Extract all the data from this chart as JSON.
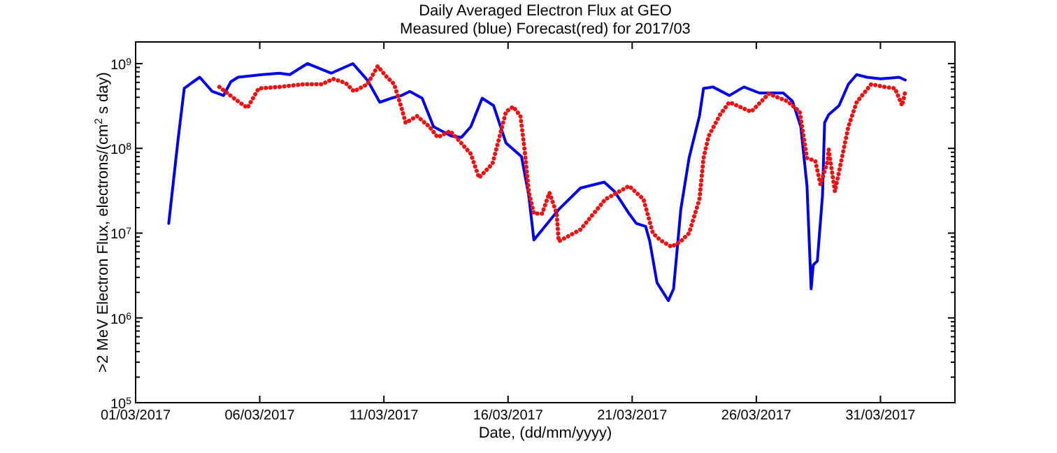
{
  "chart_data": {
    "type": "line",
    "title": "Daily Averaged Electron Flux at GEO",
    "subtitle": "Measured (blue) Forecast(red) for 2017/03",
    "xlabel": "Date, (dd/mm/yyyy)",
    "ylabel": ">2 MeV Electron Flux, electrons/(cm$^{2}$ s day)",
    "log": true,
    "xlim": [
      "2017-03-01",
      "2017-04-03"
    ],
    "xticks": [
      {
        "value": "2017-03-01",
        "label": "01/03/2017"
      },
      {
        "value": "2017-03-06",
        "label": "06/03/2017"
      },
      {
        "value": "2017-03-11",
        "label": "11/03/2017"
      },
      {
        "value": "2017-03-16",
        "label": "16/03/2017"
      },
      {
        "value": "2017-03-21",
        "label": "21/03/2017"
      },
      {
        "value": "2017-03-26",
        "label": "26/03/2017"
      },
      {
        "value": "2017-03-31",
        "label": "31/03/2017"
      }
    ],
    "ylim": [
      100000,
      1800000000
    ],
    "yticks": [
      {
        "value": 100000,
        "label": "10$^{5}$"
      },
      {
        "value": 200000,
        "label": null
      },
      {
        "value": 300000,
        "label": null
      },
      {
        "value": 400000,
        "label": null
      },
      {
        "value": 500000,
        "label": null
      },
      {
        "value": 600000,
        "label": null
      },
      {
        "value": 700000,
        "label": null
      },
      {
        "value": 800000,
        "label": null
      },
      {
        "value": 900000,
        "label": null
      },
      {
        "value": 1000000,
        "label": "10$^{6}$"
      },
      {
        "value": 2000000,
        "label": null
      },
      {
        "value": 3000000,
        "label": null
      },
      {
        "value": 4000000,
        "label": null
      },
      {
        "value": 5000000,
        "label": null
      },
      {
        "value": 6000000,
        "label": null
      },
      {
        "value": 7000000,
        "label": null
      },
      {
        "value": 8000000,
        "label": null
      },
      {
        "value": 9000000,
        "label": null
      },
      {
        "value": 10000000,
        "label": "10$^{7}$"
      },
      {
        "value": 20000000,
        "label": null
      },
      {
        "value": 30000000,
        "label": null
      },
      {
        "value": 40000000,
        "label": null
      },
      {
        "value": 50000000,
        "label": null
      },
      {
        "value": 60000000,
        "label": null
      },
      {
        "value": 70000000,
        "label": null
      },
      {
        "value": 80000000,
        "label": null
      },
      {
        "value": 90000000,
        "label": null
      },
      {
        "value": 100000000,
        "label": "10$^{8}$"
      },
      {
        "value": 200000000,
        "label": null
      },
      {
        "value": 300000000,
        "label": null
      },
      {
        "value": 400000000,
        "label": null
      },
      {
        "value": 500000000,
        "label": null
      },
      {
        "value": 600000000,
        "label": null
      },
      {
        "value": 700000000,
        "label": null
      },
      {
        "value": 800000000,
        "label": null
      },
      {
        "value": 900000000,
        "label": null
      },
      {
        "value": 1000000000,
        "label": "10$^{9}$"
      }
    ],
    "series": [
      {
        "color": "#0000ee",
        "line_style": "solid",
        "x": [
          "2017-03-02T08:00",
          "2017-03-02T17:00",
          "2017-03-02T23:00",
          "2017-03-03T06:00",
          "2017-03-03T14:00",
          "2017-03-04T02:00",
          "2017-03-04T13:00",
          "2017-03-04T20:00",
          "2017-03-05T03:00",
          "2017-03-06T02:00",
          "2017-03-06T19:00",
          "2017-03-07T05:00",
          "2017-03-07T22:00",
          "2017-03-08T21:00",
          "2017-03-09T18:00",
          "2017-03-10T08:00",
          "2017-03-10T20:00",
          "2017-03-11T07:00",
          "2017-03-11T17:00",
          "2017-03-12T01:00",
          "2017-03-12T13:00",
          "2017-03-13T00:00",
          "2017-03-13T17:00",
          "2017-03-14T03:00",
          "2017-03-14T12:00",
          "2017-03-14T23:00",
          "2017-03-15T10:00",
          "2017-03-15T22:00",
          "2017-03-16T13:00",
          "2017-03-16T20:00",
          "2017-03-17T01:00",
          "2017-03-18T01:00",
          "2017-03-18T22:00",
          "2017-03-19T21:00",
          "2017-03-20T07:00",
          "2017-03-20T21:00",
          "2017-03-21T04:00",
          "2017-03-21T13:00",
          "2017-03-21T17:00",
          "2017-03-22T00:00",
          "2017-03-22T11:00",
          "2017-03-22T16:00",
          "2017-03-22T23:00",
          "2017-03-23T07:00",
          "2017-03-23T17:00",
          "2017-03-23T21:00",
          "2017-03-24T06:00",
          "2017-03-24T22:00",
          "2017-03-25T12:00",
          "2017-03-26T03:00",
          "2017-03-27T02:00",
          "2017-03-27T11:00",
          "2017-03-27T19:00",
          "2017-03-28T01:00",
          "2017-03-28T05:00",
          "2017-03-28T07:00",
          "2017-03-28T11:00",
          "2017-03-28T16:00",
          "2017-03-28T18:00",
          "2017-03-28T22:00",
          "2017-03-29T08:00",
          "2017-03-29T17:00",
          "2017-03-30T01:00",
          "2017-03-30T11:00",
          "2017-03-31T00:00",
          "2017-03-31T18:00",
          "2017-04-01T00:00"
        ],
        "values": [
          13000000,
          126000000,
          510000000,
          590000000,
          690000000,
          470000000,
          420000000,
          610000000,
          690000000,
          740000000,
          770000000,
          740000000,
          1000000000,
          770000000,
          1000000000,
          640000000,
          350000000,
          390000000,
          420000000,
          470000000,
          390000000,
          180000000,
          140000000,
          135000000,
          180000000,
          390000000,
          320000000,
          116000000,
          80000000,
          28000000,
          8300000,
          19000000,
          34000000,
          40000000,
          31000000,
          17000000,
          13000000,
          12000000,
          8000000,
          2600000,
          1600000,
          2200000,
          19000000,
          77000000,
          240000000,
          510000000,
          530000000,
          420000000,
          530000000,
          450000000,
          450000000,
          360000000,
          180000000,
          36000000,
          2200000,
          4200000,
          4700000,
          28000000,
          200000000,
          250000000,
          320000000,
          570000000,
          740000000,
          690000000,
          660000000,
          690000000,
          640000000
        ]
      },
      {
        "color": "#ee1111",
        "line_style": "dotted",
        "x": [
          "2017-03-04T09:00",
          "2017-03-04T23:00",
          "2017-03-05T12:00",
          "2017-03-05T23:00",
          "2017-03-06T19:00",
          "2017-03-07T18:00",
          "2017-03-08T12:00",
          "2017-03-08T23:00",
          "2017-03-09T11:00",
          "2017-03-09T19:00",
          "2017-03-10T08:00",
          "2017-03-10T18:00",
          "2017-03-11T03:00",
          "2017-03-11T10:00",
          "2017-03-11T17:00",
          "2017-03-11T21:00",
          "2017-03-12T08:00",
          "2017-03-12T20:00",
          "2017-03-13T04:00",
          "2017-03-13T16:00",
          "2017-03-14T00:00",
          "2017-03-14T12:00",
          "2017-03-14T20:00",
          "2017-03-15T09:00",
          "2017-03-15T15:00",
          "2017-03-15T22:00",
          "2017-03-16T05:00",
          "2017-03-16T12:00",
          "2017-03-16T16:00",
          "2017-03-16T20:00",
          "2017-03-17T01:00",
          "2017-03-17T09:00",
          "2017-03-17T16:00",
          "2017-03-17T23:00",
          "2017-03-18T01:00",
          "2017-03-18T22:00",
          "2017-03-19T22:00",
          "2017-03-20T21:00",
          "2017-03-21T11:00",
          "2017-03-21T20:00",
          "2017-03-22T03:00",
          "2017-03-22T14:00",
          "2017-03-22T23:00",
          "2017-03-23T07:00",
          "2017-03-23T17:00",
          "2017-03-23T21:00",
          "2017-03-24T02:00",
          "2017-03-24T13:00",
          "2017-03-24T22:00",
          "2017-03-25T19:00",
          "2017-03-26T12:00",
          "2017-03-27T06:00",
          "2017-03-27T18:00",
          "2017-03-28T01:00",
          "2017-03-28T09:00",
          "2017-03-28T14:00",
          "2017-03-28T21:00",
          "2017-03-28T22:00",
          "2017-03-29T04:00",
          "2017-03-29T08:00",
          "2017-03-29T17:00",
          "2017-03-30T01:00",
          "2017-03-30T15:00",
          "2017-03-31T04:00",
          "2017-03-31T14:00",
          "2017-03-31T21:00",
          "2017-04-01T00:00"
        ],
        "values": [
          530000000,
          390000000,
          300000000,
          510000000,
          530000000,
          570000000,
          570000000,
          660000000,
          590000000,
          470000000,
          570000000,
          930000000,
          690000000,
          570000000,
          300000000,
          200000000,
          240000000,
          180000000,
          135000000,
          160000000,
          126000000,
          86000000,
          45000000,
          66000000,
          126000000,
          270000000,
          310000000,
          240000000,
          97000000,
          31000000,
          17000000,
          17000000,
          30000000,
          17000000,
          8000000,
          11000000,
          25000000,
          36000000,
          25000000,
          10000000,
          8300000,
          6900000,
          8000000,
          10000000,
          25000000,
          77000000,
          140000000,
          250000000,
          350000000,
          270000000,
          440000000,
          360000000,
          270000000,
          77000000,
          71000000,
          37500000,
          71000000,
          97000000,
          31000000,
          53000000,
          180000000,
          350000000,
          570000000,
          530000000,
          510000000,
          320000000,
          470000000
        ]
      }
    ]
  }
}
